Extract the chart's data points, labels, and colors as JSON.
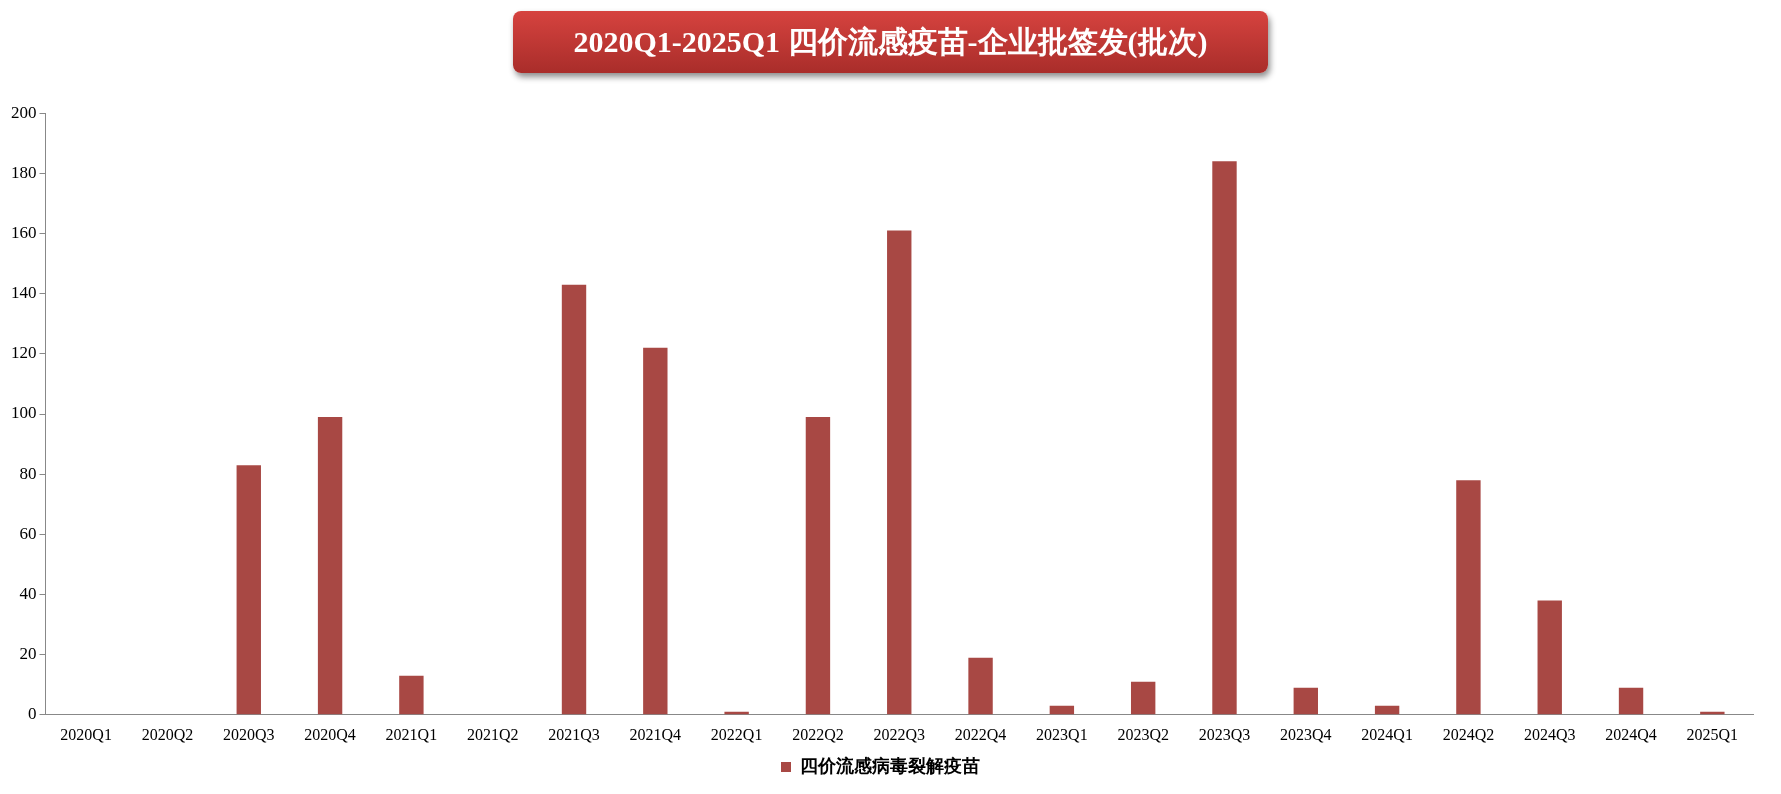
{
  "chart_data": {
    "type": "bar",
    "title": "2020Q1-2025Q1 四价流感疫苗-企业批签发(批次)",
    "categories": [
      "2020Q1",
      "2020Q2",
      "2020Q3",
      "2020Q4",
      "2021Q1",
      "2021Q2",
      "2021Q3",
      "2021Q4",
      "2022Q1",
      "2022Q2",
      "2022Q3",
      "2022Q4",
      "2023Q1",
      "2023Q2",
      "2023Q3",
      "2023Q4",
      "2024Q1",
      "2024Q2",
      "2024Q3",
      "2024Q4",
      "2025Q1"
    ],
    "series": [
      {
        "name": "四价流感病毒裂解疫苗",
        "color": "#a84844",
        "values": [
          0,
          0,
          83,
          99,
          13,
          0,
          143,
          122,
          1,
          99,
          161,
          19,
          3,
          11,
          184,
          9,
          3,
          78,
          38,
          9,
          1
        ]
      }
    ],
    "ylim": [
      0,
      200
    ],
    "yticks": [
      0,
      20,
      40,
      60,
      80,
      100,
      120,
      140,
      160,
      180,
      200
    ],
    "grid": false,
    "legend": "bottom"
  }
}
